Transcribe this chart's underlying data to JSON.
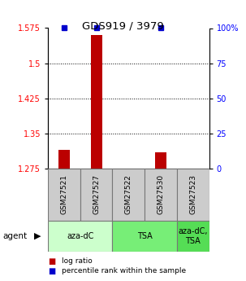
{
  "title": "GDS919 / 3979",
  "samples": [
    "GSM27521",
    "GSM27527",
    "GSM27522",
    "GSM27530",
    "GSM27523"
  ],
  "log_ratios": [
    1.315,
    1.56,
    1.275,
    1.31,
    1.275
  ],
  "percentile_ranks": [
    100,
    100,
    0,
    100,
    0
  ],
  "ylim_left": [
    1.275,
    1.575
  ],
  "ylim_right": [
    0,
    100
  ],
  "yticks_left": [
    1.275,
    1.35,
    1.425,
    1.5,
    1.575
  ],
  "yticks_right": [
    0,
    25,
    50,
    75,
    100
  ],
  "ytick_labels_left": [
    "1.275",
    "1.35",
    "1.425",
    "1.5",
    "1.575"
  ],
  "ytick_labels_right": [
    "0",
    "25",
    "50",
    "75",
    "100%"
  ],
  "gridlines_at": [
    1.35,
    1.425,
    1.5
  ],
  "agents": [
    {
      "label": "aza-dC",
      "span": [
        0,
        2
      ],
      "color": "#ccffcc"
    },
    {
      "label": "TSA",
      "span": [
        2,
        4
      ],
      "color": "#77ee77"
    },
    {
      "label": "aza-dC,\nTSA",
      "span": [
        4,
        5
      ],
      "color": "#55dd55"
    }
  ],
  "bar_color": "#bb0000",
  "dot_color": "#0000cc",
  "sample_bg_color": "#cccccc",
  "sample_border_color": "#777777",
  "legend_red": "log ratio",
  "legend_blue": "percentile rank within the sample",
  "bar_width": 0.35,
  "dot_size": 5
}
